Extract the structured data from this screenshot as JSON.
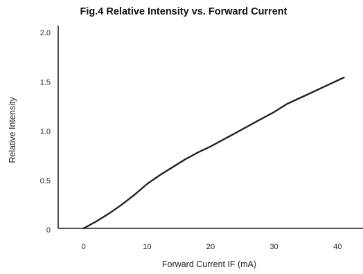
{
  "chart_data": {
    "type": "line",
    "title": "Fig.4 Relative Intensity vs. Forward Current",
    "xlabel": "Forward Current IF (mA)",
    "ylabel": "Relative Intensity",
    "x_ticks": [
      0,
      10,
      20,
      30,
      40
    ],
    "y_ticks": [
      0,
      0.5,
      1.0,
      1.5,
      2.0
    ],
    "x_tick_labels": [
      "0",
      "10",
      "20",
      "30",
      "40"
    ],
    "y_tick_labels": [
      "0",
      "0.5",
      "1.0",
      "1.5",
      "2.0"
    ],
    "xlim": [
      -4,
      44
    ],
    "ylim": [
      0,
      2.0
    ],
    "grid": false,
    "series": [
      {
        "x": [
          0,
          2,
          4,
          6,
          8,
          10,
          12,
          14,
          16,
          18,
          20,
          22,
          24,
          26,
          28,
          30,
          32,
          34,
          36,
          38,
          41
        ],
        "values": [
          0,
          0.07,
          0.15,
          0.24,
          0.34,
          0.45,
          0.54,
          0.62,
          0.7,
          0.77,
          0.83,
          0.9,
          0.97,
          1.04,
          1.11,
          1.18,
          1.26,
          1.32,
          1.38,
          1.44,
          1.53
        ]
      }
    ],
    "colors": {
      "line": "#222222",
      "axis": "#222222"
    }
  }
}
